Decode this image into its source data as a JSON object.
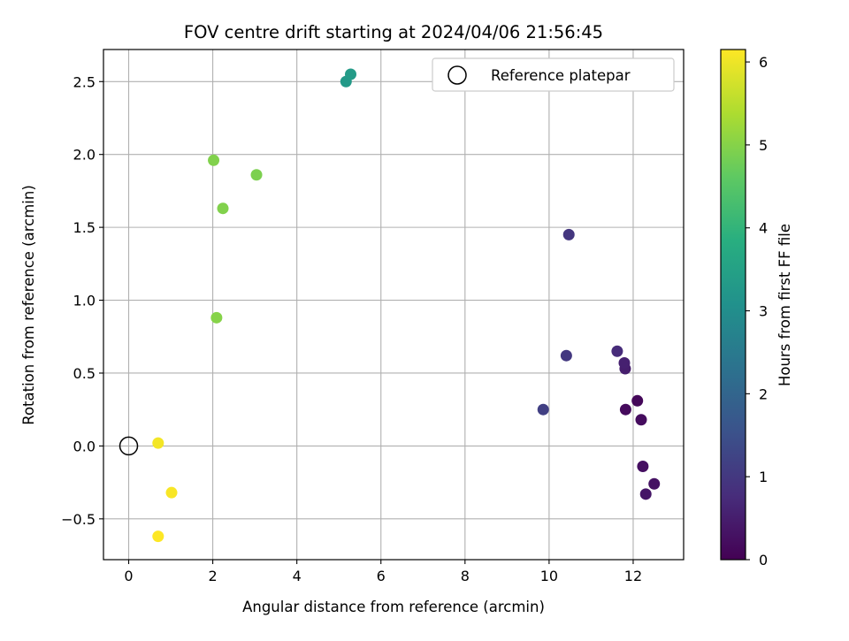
{
  "chart_data": {
    "type": "scatter",
    "title": "FOV centre drift starting at 2024/04/06 21:56:45",
    "xlabel": "Angular distance from reference (arcmin)",
    "ylabel": "Rotation from reference (arcmin)",
    "xlim": [
      -0.6,
      13.2
    ],
    "ylim": [
      -0.78,
      2.72
    ],
    "xticks": [
      0,
      2,
      4,
      6,
      8,
      10,
      12
    ],
    "xtick_labels": [
      "0",
      "2",
      "4",
      "6",
      "8",
      "10",
      "12"
    ],
    "yticks": [
      -0.5,
      0,
      0.5,
      1,
      1.5,
      2,
      2.5
    ],
    "ytick_labels": [
      "−0.5",
      "0.0",
      "0.5",
      "1.0",
      "1.5",
      "2.0",
      "2.5"
    ],
    "grid": true,
    "legend": {
      "position": "top-right",
      "label": "Reference platepar"
    },
    "reference_point": {
      "x": 0.0,
      "y": 0.0
    },
    "colorbar": {
      "label": "Hours from first FF file",
      "colormap": "viridis",
      "range": [
        0,
        6.15
      ],
      "ticks": [
        0,
        1,
        2,
        3,
        4,
        5,
        6
      ],
      "tick_labels": [
        "0",
        "1",
        "2",
        "3",
        "4",
        "5",
        "6"
      ]
    },
    "points": [
      {
        "x": 12.1,
        "y": 0.31,
        "hours": 0.1
      },
      {
        "x": 11.82,
        "y": 0.25,
        "hours": 0.15
      },
      {
        "x": 12.19,
        "y": 0.18,
        "hours": 0.2
      },
      {
        "x": 12.23,
        "y": -0.14,
        "hours": 0.25
      },
      {
        "x": 12.5,
        "y": -0.26,
        "hours": 0.3
      },
      {
        "x": 12.3,
        "y": -0.33,
        "hours": 0.35
      },
      {
        "x": 11.81,
        "y": 0.53,
        "hours": 0.5
      },
      {
        "x": 11.79,
        "y": 0.57,
        "hours": 0.55
      },
      {
        "x": 11.62,
        "y": 0.65,
        "hours": 0.75
      },
      {
        "x": 10.47,
        "y": 1.45,
        "hours": 0.95
      },
      {
        "x": 10.41,
        "y": 0.62,
        "hours": 1.0
      },
      {
        "x": 9.86,
        "y": 0.25,
        "hours": 1.15
      },
      {
        "x": 5.17,
        "y": 2.5,
        "hours": 3.3
      },
      {
        "x": 5.28,
        "y": 2.55,
        "hours": 3.35
      },
      {
        "x": 3.04,
        "y": 1.86,
        "hours": 4.9
      },
      {
        "x": 2.02,
        "y": 1.96,
        "hours": 4.95
      },
      {
        "x": 2.24,
        "y": 1.63,
        "hours": 4.95
      },
      {
        "x": 2.09,
        "y": 0.88,
        "hours": 5.0
      },
      {
        "x": 0.7,
        "y": 0.02,
        "hours": 6.05
      },
      {
        "x": 1.02,
        "y": -0.32,
        "hours": 6.1
      },
      {
        "x": 0.7,
        "y": -0.62,
        "hours": 6.15
      }
    ]
  }
}
